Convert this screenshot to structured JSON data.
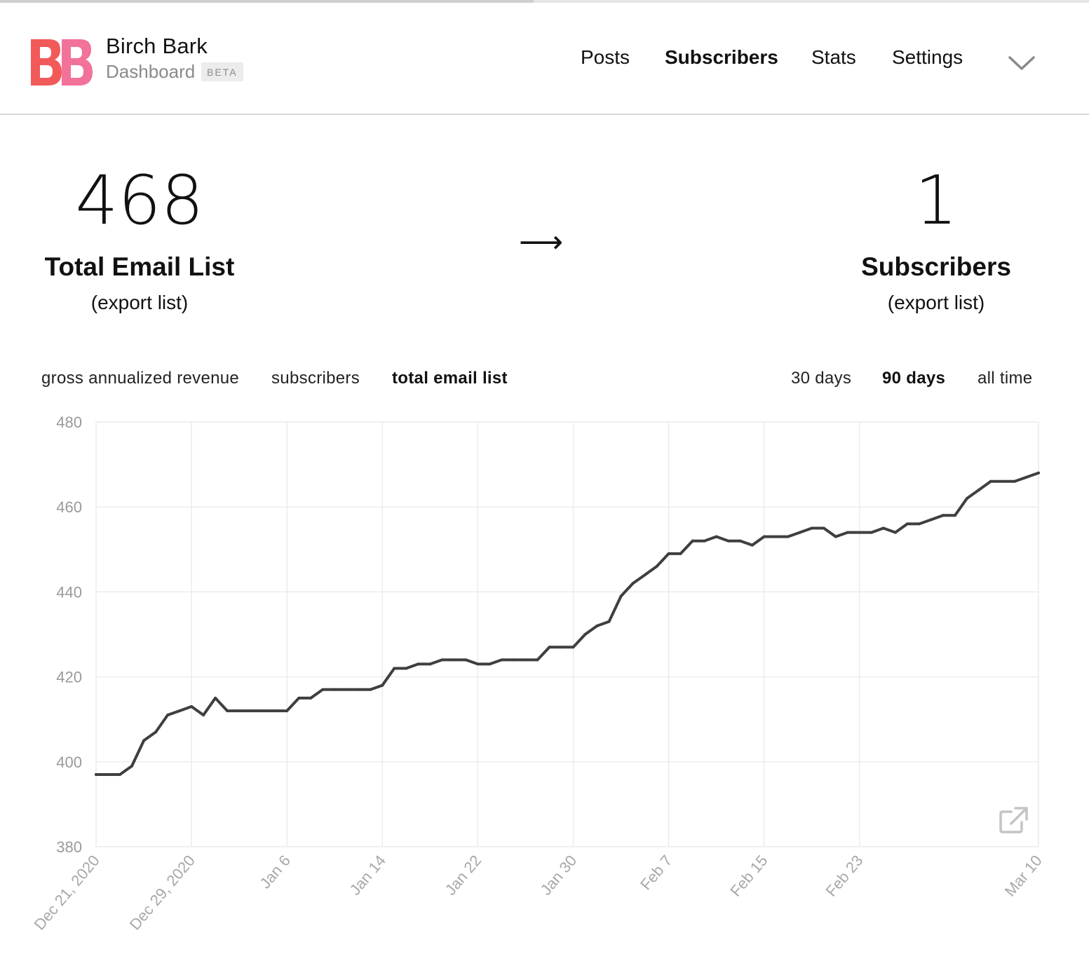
{
  "page_progress": {
    "value_fraction": 0.49
  },
  "brand": {
    "logo_letters": "BB",
    "name": "Birch Bark",
    "subtitle": "Dashboard",
    "badge": "BETA",
    "colors": {
      "logo_primary": "#f25a5a",
      "logo_secondary": "#f2729a"
    }
  },
  "nav": {
    "items": [
      {
        "label": "Posts",
        "active": false
      },
      {
        "label": "Subscribers",
        "active": true
      },
      {
        "label": "Stats",
        "active": false
      },
      {
        "label": "Settings",
        "active": false
      }
    ],
    "menu_icon": "chevron-down-icon"
  },
  "stats": {
    "total": {
      "value": "468",
      "label": "Total Email List",
      "link": "(export list)"
    },
    "arrow": "⟶",
    "subscribers": {
      "value": "1",
      "label": "Subscribers",
      "link": "(export list)"
    }
  },
  "metric_tabs": [
    {
      "label": "gross annualized revenue",
      "active": false
    },
    {
      "label": "subscribers",
      "active": false
    },
    {
      "label": "total email list",
      "active": true
    }
  ],
  "range_tabs": [
    {
      "label": "30 days",
      "active": false
    },
    {
      "label": "90 days",
      "active": true
    },
    {
      "label": "all time",
      "active": false
    }
  ],
  "chart_data": {
    "type": "line",
    "title": "",
    "xlabel": "",
    "ylabel": "",
    "ylim": [
      380,
      480
    ],
    "y_ticks": [
      "480",
      "460",
      "440",
      "420",
      "400",
      "380"
    ],
    "x_tick_labels": [
      "Dec 21, 2020",
      "Dec 29, 2020",
      "Jan 6",
      "Jan 14",
      "Jan 22",
      "Jan 30",
      "Feb 7",
      "Feb 15",
      "Feb 23",
      "Mar 10"
    ],
    "x_tick_dates": [
      "2020-12-21",
      "2020-12-29",
      "2021-01-06",
      "2021-01-14",
      "2021-01-22",
      "2021-01-30",
      "2021-02-07",
      "2021-02-15",
      "2021-02-23",
      "2021-03-10"
    ],
    "x_start": "2020-12-21",
    "x_end": "2021-03-10",
    "grid": true,
    "line_color": "#3f3f3f",
    "series": [
      {
        "points": [
          [
            "2020-12-21",
            397
          ],
          [
            "2020-12-22",
            397
          ],
          [
            "2020-12-23",
            397
          ],
          [
            "2020-12-24",
            399
          ],
          [
            "2020-12-25",
            405
          ],
          [
            "2020-12-26",
            407
          ],
          [
            "2020-12-27",
            411
          ],
          [
            "2020-12-28",
            412
          ],
          [
            "2020-12-29",
            413
          ],
          [
            "2020-12-30",
            411
          ],
          [
            "2020-12-31",
            415
          ],
          [
            "2021-01-01",
            412
          ],
          [
            "2021-01-02",
            412
          ],
          [
            "2021-01-03",
            412
          ],
          [
            "2021-01-04",
            412
          ],
          [
            "2021-01-05",
            412
          ],
          [
            "2021-01-06",
            412
          ],
          [
            "2021-01-07",
            415
          ],
          [
            "2021-01-08",
            415
          ],
          [
            "2021-01-09",
            417
          ],
          [
            "2021-01-10",
            417
          ],
          [
            "2021-01-11",
            417
          ],
          [
            "2021-01-12",
            417
          ],
          [
            "2021-01-13",
            417
          ],
          [
            "2021-01-14",
            418
          ],
          [
            "2021-01-15",
            422
          ],
          [
            "2021-01-16",
            422
          ],
          [
            "2021-01-17",
            423
          ],
          [
            "2021-01-18",
            423
          ],
          [
            "2021-01-19",
            424
          ],
          [
            "2021-01-20",
            424
          ],
          [
            "2021-01-21",
            424
          ],
          [
            "2021-01-22",
            423
          ],
          [
            "2021-01-23",
            423
          ],
          [
            "2021-01-24",
            424
          ],
          [
            "2021-01-25",
            424
          ],
          [
            "2021-01-26",
            424
          ],
          [
            "2021-01-27",
            424
          ],
          [
            "2021-01-28",
            427
          ],
          [
            "2021-01-29",
            427
          ],
          [
            "2021-01-30",
            427
          ],
          [
            "2021-01-31",
            430
          ],
          [
            "2021-02-01",
            432
          ],
          [
            "2021-02-02",
            433
          ],
          [
            "2021-02-03",
            439
          ],
          [
            "2021-02-04",
            442
          ],
          [
            "2021-02-05",
            444
          ],
          [
            "2021-02-06",
            446
          ],
          [
            "2021-02-07",
            449
          ],
          [
            "2021-02-08",
            449
          ],
          [
            "2021-02-09",
            452
          ],
          [
            "2021-02-10",
            452
          ],
          [
            "2021-02-11",
            453
          ],
          [
            "2021-02-12",
            452
          ],
          [
            "2021-02-13",
            452
          ],
          [
            "2021-02-14",
            451
          ],
          [
            "2021-02-15",
            453
          ],
          [
            "2021-02-16",
            453
          ],
          [
            "2021-02-17",
            453
          ],
          [
            "2021-02-18",
            454
          ],
          [
            "2021-02-19",
            455
          ],
          [
            "2021-02-20",
            455
          ],
          [
            "2021-02-21",
            453
          ],
          [
            "2021-02-22",
            454
          ],
          [
            "2021-02-23",
            454
          ],
          [
            "2021-02-24",
            454
          ],
          [
            "2021-02-25",
            455
          ],
          [
            "2021-02-26",
            454
          ],
          [
            "2021-02-27",
            456
          ],
          [
            "2021-02-28",
            456
          ],
          [
            "2021-03-01",
            457
          ],
          [
            "2021-03-02",
            458
          ],
          [
            "2021-03-03",
            458
          ],
          [
            "2021-03-04",
            462
          ],
          [
            "2021-03-05",
            464
          ],
          [
            "2021-03-06",
            466
          ],
          [
            "2021-03-07",
            466
          ],
          [
            "2021-03-08",
            466
          ],
          [
            "2021-03-09",
            467
          ],
          [
            "2021-03-10",
            468
          ]
        ]
      }
    ]
  },
  "chart_export_icon": "external-link-icon"
}
